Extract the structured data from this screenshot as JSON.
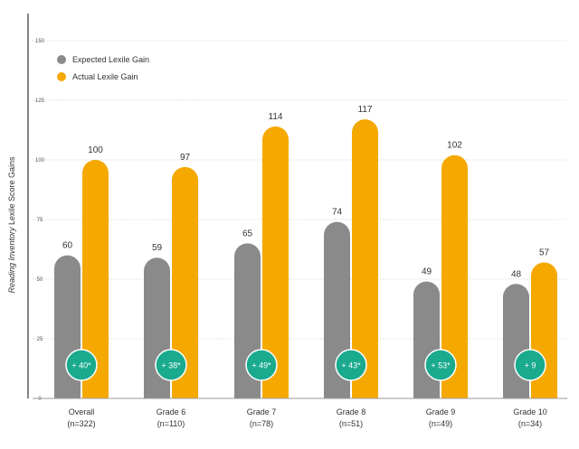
{
  "chart_data": {
    "type": "bar",
    "title": "",
    "xlabel": "",
    "ylabel_italic": "Reading Inventory",
    "ylabel_rest": " Lexile Score Gains",
    "ylim": [
      0,
      150
    ],
    "yticks": [
      "0",
      "25",
      "50",
      "75",
      "100",
      "125",
      "150"
    ],
    "grid": true,
    "legend_position": "top-left",
    "categories": [
      {
        "name": "Overall",
        "n": "(n=322)"
      },
      {
        "name": "Grade 6",
        "n": "(n=110)"
      },
      {
        "name": "Grade 7",
        "n": "(n=78)"
      },
      {
        "name": "Grade 8",
        "n": "(n=51)"
      },
      {
        "name": "Grade 9",
        "n": "(n=49)"
      },
      {
        "name": "Grade 10",
        "n": "(n=34)"
      }
    ],
    "series": [
      {
        "name": "Expected Lexile Gain",
        "color": "#8a8a8a",
        "values": [
          60,
          59,
          65,
          74,
          49,
          48
        ]
      },
      {
        "name": "Actual Lexile Gain",
        "color": "#f5a800",
        "values": [
          100,
          97,
          114,
          117,
          102,
          57
        ]
      }
    ],
    "differences": [
      "+ 40*",
      "+ 38*",
      "+ 49*",
      "+ 43*",
      "+ 53*",
      "+ 9"
    ],
    "difference_color": "#1aaa8e"
  }
}
